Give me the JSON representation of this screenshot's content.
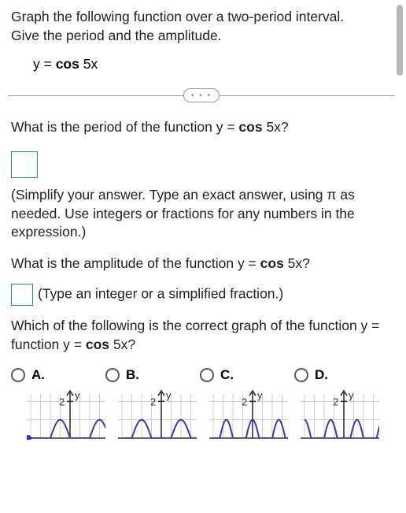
{
  "prompt_line1": "Graph the following function over a two-period interval.",
  "prompt_line2": "Give the period and the amplitude.",
  "equation_prefix": "y = ",
  "equation_func": "cos ",
  "equation_arg": "5x",
  "divider_dots": "• • •",
  "q1_a": "What is the period of the function y = ",
  "q1_b": "cos ",
  "q1_c": "5x?",
  "hint1": "(Simplify your answer. Type an exact answer, using π as needed. Use integers or fractions for any numbers in the expression.)",
  "q2_a": "What is the amplitude of the function y = ",
  "q2_b": "cos ",
  "q2_c": "5x?",
  "hint2": "(Type an integer or a simplified fraction.)",
  "q3_a": "Which of the following is the correct graph of the function y = ",
  "q3_b": "cos ",
  "q3_c": "5x?",
  "options": {
    "A": "A.",
    "B": "B.",
    "C": "C.",
    "D": "D."
  },
  "graph": {
    "axis_label_y": "y",
    "tick_label": "2",
    "colors": {
      "axis": "#333333",
      "grid": "#cfcfcf",
      "curve": "#4a2fbd",
      "point": "#4a2fbd"
    },
    "width": 100,
    "height": 64,
    "xlim": [
      -1.6,
      1.6
    ],
    "ylim_top": 2.4,
    "x_grid_step": 0.4,
    "curves": {
      "A": {
        "type": "cos-like",
        "phase": 1.5708,
        "periods_shown": 2,
        "start_point": true
      },
      "B": {
        "type": "cos-like",
        "phase": 3.1416,
        "periods_shown": 2,
        "start_point": false
      },
      "C": {
        "type": "cos-like",
        "phase": 0,
        "periods_shown": 3,
        "start_point": true
      },
      "D": {
        "type": "cos-like",
        "phase": 3.1416,
        "periods_shown": 3,
        "start_point": false
      }
    }
  }
}
